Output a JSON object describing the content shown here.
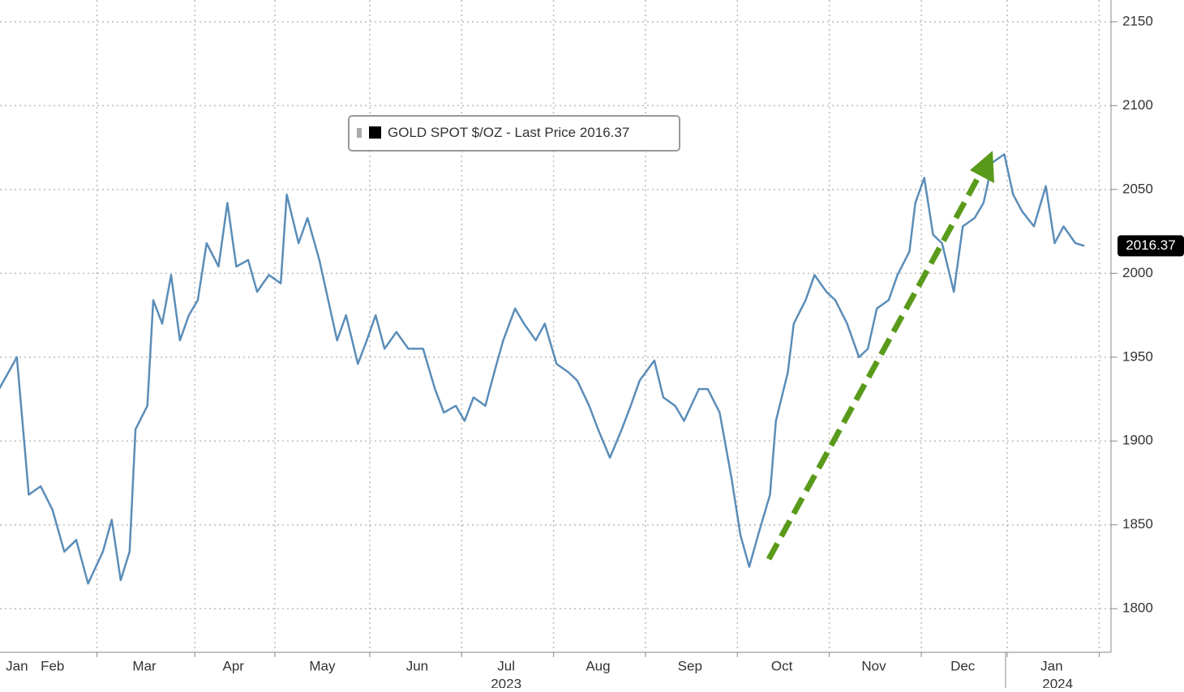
{
  "chart_data": {
    "type": "line",
    "legend_label": "GOLD SPOT $/OZ - Last Price",
    "last_price": 2016.37,
    "x": [
      24,
      30,
      34,
      38,
      42,
      46,
      50,
      54,
      59,
      62,
      65,
      68,
      70,
      74,
      76,
      79,
      82,
      85,
      88,
      91,
      94,
      98,
      101,
      104,
      108,
      111,
      115,
      119,
      121,
      125,
      128,
      132,
      135,
      138,
      141,
      145,
      148,
      151,
      154,
      158,
      162,
      167,
      171,
      174,
      178,
      181,
      184,
      188,
      191,
      194,
      198,
      201,
      205,
      208,
      212,
      216,
      219,
      223,
      226,
      230,
      234,
      237,
      240,
      245,
      248,
      252,
      255,
      260,
      263,
      267,
      271,
      274,
      277,
      280,
      284,
      286,
      290,
      292,
      296,
      299,
      303,
      306,
      310,
      314,
      317,
      320,
      324,
      327,
      331,
      333,
      336,
      339,
      342,
      346,
      349,
      353,
      356,
      359,
      363,
      366,
      369,
      373,
      377,
      380,
      383,
      387,
      390
    ],
    "series": [
      {
        "name": "GOLD SPOT $/OZ",
        "color": "#5b8db8",
        "values": [
          1931,
          1950,
          1868,
          1873,
          1859,
          1834,
          1841,
          1815,
          1834,
          1853,
          1817,
          1834,
          1907,
          1921,
          1984,
          1970,
          1999,
          1960,
          1975,
          1984,
          2018,
          2004,
          2042,
          2004,
          2008,
          1989,
          1999,
          1994,
          2047,
          2018,
          2033,
          2008,
          1984,
          1960,
          1975,
          1946,
          1960,
          1975,
          1955,
          1965,
          1955,
          1955,
          1931,
          1917,
          1921,
          1912,
          1926,
          1921,
          1941,
          1960,
          1979,
          1970,
          1960,
          1970,
          1946,
          1941,
          1936,
          1921,
          1907,
          1890,
          1907,
          1921,
          1936,
          1948,
          1926,
          1921,
          1912,
          1931,
          1931,
          1917,
          1878,
          1844,
          1825,
          1844,
          1868,
          1912,
          1941,
          1970,
          1984,
          1999,
          1989,
          1984,
          1970,
          1950,
          1955,
          1979,
          1984,
          1999,
          2013,
          2042,
          2057,
          2023,
          2018,
          1989,
          2028,
          2033,
          2042,
          2066,
          2071,
          2047,
          2037,
          2028,
          2052,
          2018,
          2028,
          2018,
          2016.37
        ]
      }
    ],
    "xlim": [
      24.3,
      399
    ],
    "xticks": [
      {
        "value": 30,
        "label": "Jan"
      },
      {
        "value": 42,
        "label": "Feb"
      },
      {
        "value": 73,
        "label": "Mar"
      },
      {
        "value": 103,
        "label": "Apr"
      },
      {
        "value": 133,
        "label": "May"
      },
      {
        "value": 165,
        "label": "Jun"
      },
      {
        "value": 195,
        "label": "Jul"
      },
      {
        "value": 226,
        "label": "Aug"
      },
      {
        "value": 257,
        "label": "Sep"
      },
      {
        "value": 288,
        "label": "Oct"
      },
      {
        "value": 319,
        "label": "Nov"
      },
      {
        "value": 349,
        "label": "Dec"
      },
      {
        "value": 379,
        "label": "Jan"
      }
    ],
    "year_labels": [
      {
        "value": 195,
        "label": "2023"
      },
      {
        "value": 381,
        "label": "2024"
      }
    ],
    "x_gridlines": [
      57,
      90,
      117,
      149,
      180,
      211,
      242,
      273,
      304,
      335,
      364,
      395
    ],
    "ylim": [
      1774,
      2163
    ],
    "yticks": [
      1800,
      1850,
      1900,
      1950,
      2000,
      2050,
      2100,
      2150
    ],
    "grid": true
  }
}
